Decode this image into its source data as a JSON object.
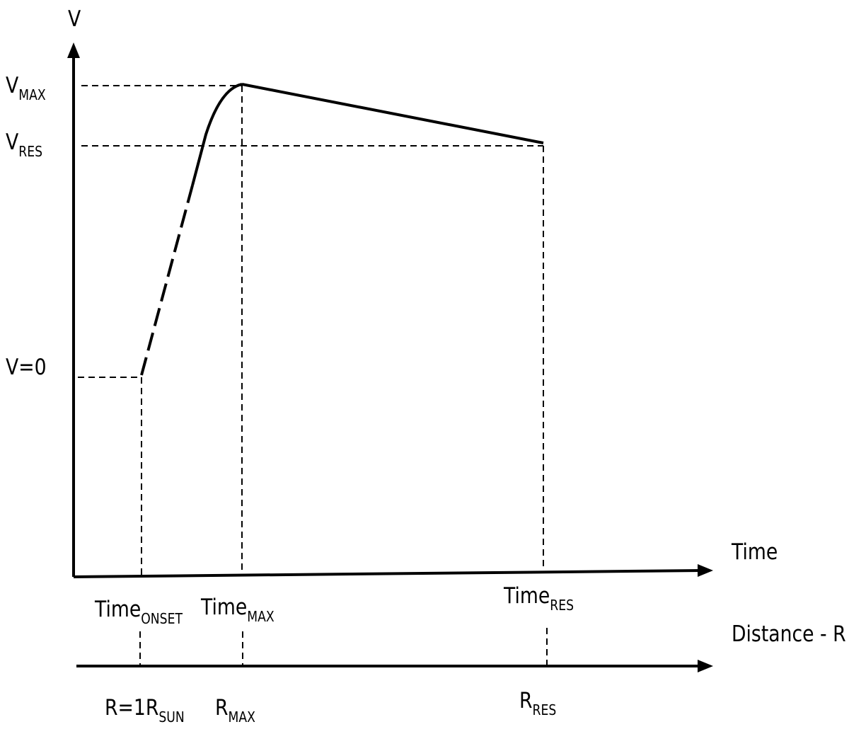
{
  "labels": {
    "y_axis": "V",
    "v_max": {
      "main": "V",
      "sub": "MAX"
    },
    "v_res": {
      "main": "V",
      "sub": "RES"
    },
    "v_zero": "V=0",
    "x_axis_time": "Time",
    "time_onset": {
      "main": "Time",
      "sub": "ONSET"
    },
    "time_max": {
      "main": "Time",
      "sub": "MAX"
    },
    "time_res": {
      "main": "Time",
      "sub": "RES"
    },
    "distance_axis": "Distance - R",
    "r_sun": {
      "main": "R=1R",
      "sub": "SUN"
    },
    "r_max": {
      "main": "R",
      "sub": "MAX"
    },
    "r_res": {
      "main": "R",
      "sub": "RES"
    }
  },
  "colors": {
    "ink": "#000000",
    "background": "#ffffff"
  }
}
